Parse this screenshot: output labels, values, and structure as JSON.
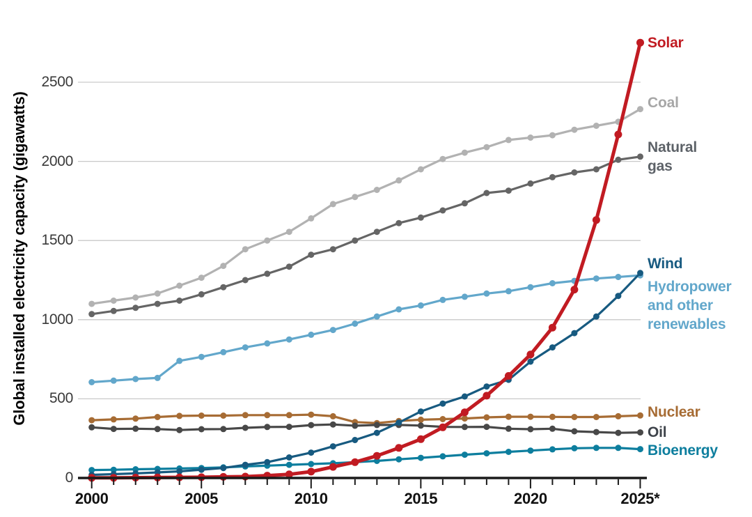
{
  "chart_data": {
    "type": "line",
    "title": "",
    "ylabel": "Global installed electricity capacity (gigawatts)",
    "xlabel": "",
    "units": "gigawatts",
    "x": [
      2000,
      2001,
      2002,
      2003,
      2004,
      2005,
      2006,
      2007,
      2008,
      2009,
      2010,
      2011,
      2012,
      2013,
      2014,
      2015,
      2016,
      2017,
      2018,
      2019,
      2020,
      2021,
      2022,
      2023,
      2024,
      2025
    ],
    "x_major_ticks": [
      2000,
      2005,
      2010,
      2015,
      2020,
      2025
    ],
    "x_tick_labels": [
      "2000",
      "2005",
      "2010",
      "2015",
      "2020",
      "2025*"
    ],
    "yticks": [
      0,
      500,
      1000,
      1500,
      2000,
      2500
    ],
    "ylim": [
      0,
      2900
    ],
    "xlim": [
      2000,
      2025
    ],
    "grid": "horizontal-only",
    "legend_position": "right-end-labels",
    "colors": {
      "grid": "#c9c9c9",
      "axis": "#1a1a1a",
      "background": "#ffffff"
    },
    "series": [
      {
        "key": "coal",
        "label": "Coal",
        "color": "#b2b2b2",
        "label_color": "#a7a7a7",
        "values": [
          1100,
          1120,
          1140,
          1165,
          1215,
          1265,
          1340,
          1445,
          1500,
          1555,
          1640,
          1730,
          1775,
          1820,
          1880,
          1950,
          2015,
          2055,
          2090,
          2135,
          2150,
          2165,
          2200,
          2225,
          2250,
          2330
        ]
      },
      {
        "key": "gas",
        "label": "Natural gas",
        "color": "#656565",
        "label_color": "#5d6268",
        "values": [
          1035,
          1055,
          1075,
          1100,
          1120,
          1160,
          1205,
          1250,
          1290,
          1335,
          1410,
          1445,
          1500,
          1555,
          1610,
          1645,
          1690,
          1735,
          1800,
          1815,
          1860,
          1900,
          1930,
          1950,
          2010,
          2030
        ]
      },
      {
        "key": "hydro",
        "label": "Hydropower and other renewables",
        "color": "#62a7cb",
        "label_color": "#62a7cb",
        "values": [
          605,
          615,
          625,
          632,
          740,
          765,
          795,
          825,
          850,
          875,
          905,
          935,
          975,
          1020,
          1065,
          1090,
          1125,
          1145,
          1165,
          1180,
          1205,
          1230,
          1245,
          1260,
          1270,
          1280
        ]
      },
      {
        "key": "nuclear",
        "label": "Nuclear",
        "color": "#a76c34",
        "label_color": "#a76c34",
        "values": [
          365,
          370,
          375,
          385,
          392,
          394,
          394,
          397,
          397,
          397,
          400,
          390,
          353,
          347,
          360,
          368,
          372,
          376,
          383,
          387,
          387,
          386,
          385,
          385,
          390,
          395
        ]
      },
      {
        "key": "oil",
        "label": "Oil",
        "color": "#484848",
        "label_color": "#3f444b",
        "values": [
          320,
          310,
          311,
          309,
          303,
          308,
          309,
          317,
          322,
          323,
          334,
          338,
          330,
          335,
          335,
          331,
          323,
          322,
          323,
          311,
          308,
          311,
          295,
          290,
          285,
          288
        ]
      },
      {
        "key": "bio",
        "label": "Bioenergy",
        "color": "#0d7e9e",
        "label_color": "#0d7e9e",
        "values": [
          50,
          52,
          55,
          57,
          60,
          63,
          67,
          73,
          78,
          83,
          88,
          93,
          100,
          108,
          118,
          127,
          137,
          147,
          156,
          165,
          173,
          181,
          188,
          190,
          190,
          182
        ]
      },
      {
        "key": "wind",
        "label": "Wind",
        "color": "#175a80",
        "label_color": "#175a80",
        "values": [
          20,
          24,
          29,
          35,
          42,
          52,
          63,
          83,
          100,
          130,
          160,
          200,
          240,
          285,
          350,
          420,
          470,
          515,
          578,
          620,
          735,
          825,
          915,
          1020,
          1150,
          1295
        ]
      },
      {
        "key": "solar",
        "label": "Solar",
        "color": "#c11b22",
        "label_color": "#c11b22",
        "values": [
          1,
          1,
          2,
          3,
          4,
          5,
          7,
          9,
          15,
          23,
          40,
          70,
          100,
          140,
          190,
          245,
          320,
          415,
          520,
          645,
          780,
          950,
          1190,
          1630,
          2170,
          2750
        ]
      }
    ]
  }
}
